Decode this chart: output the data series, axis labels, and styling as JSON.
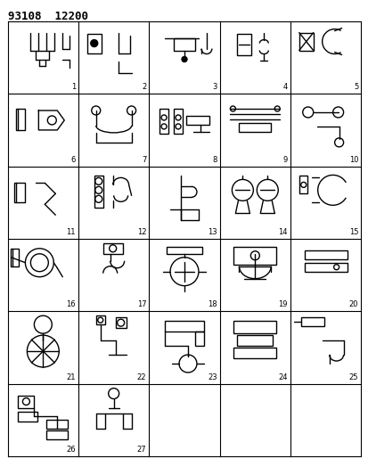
{
  "title": "93108  12200",
  "background_color": "#ffffff",
  "grid_color": "#000000",
  "line_color": "#000000",
  "figsize": [
    4.14,
    5.33
  ],
  "dpi": 100,
  "grid_cols": 5,
  "grid_rows": 6,
  "header_fontsize": 9,
  "label_fontsize": 6.0
}
